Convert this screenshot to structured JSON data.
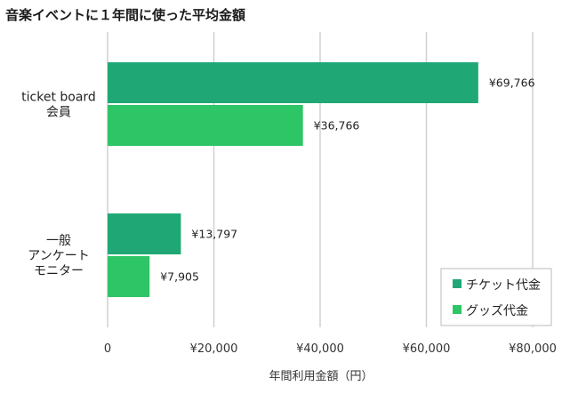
{
  "chart_data": {
    "type": "bar",
    "orientation": "horizontal",
    "title": "音楽イベントに１年間に使った平均金額",
    "xlabel": "年間利用金額（円）",
    "ylabel": "",
    "xlim": [
      0,
      80000
    ],
    "x_ticks": [
      {
        "value": 0,
        "label": "0"
      },
      {
        "value": 20000,
        "label": "¥20,000"
      },
      {
        "value": 40000,
        "label": "¥40,000"
      },
      {
        "value": 60000,
        "label": "¥60,000"
      },
      {
        "value": 80000,
        "label": "¥80,000"
      }
    ],
    "grid": "vertical",
    "legend_position": "bottom-right",
    "categories": [
      {
        "lines": [
          "ticket board",
          "会員"
        ]
      },
      {
        "lines": [
          "一般",
          "アンケート",
          "モニター"
        ]
      }
    ],
    "series": [
      {
        "name": "チケット代金",
        "color": "#1fa876",
        "values": [
          69766,
          13797
        ],
        "labels": [
          "¥69,766",
          "¥13,797"
        ]
      },
      {
        "name": "グッズ代金",
        "color": "#2ec566",
        "values": [
          36766,
          7905
        ],
        "labels": [
          "¥36,766",
          "¥7,905"
        ]
      }
    ]
  }
}
